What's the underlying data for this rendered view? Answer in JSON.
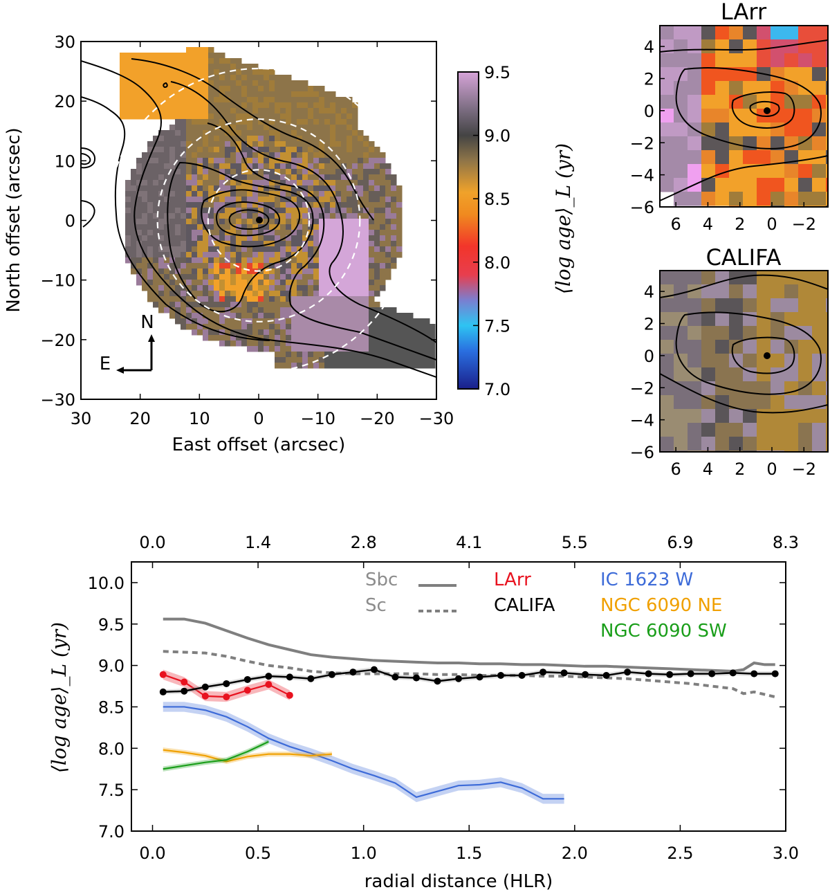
{
  "chart_data": [
    {
      "type": "heatmap",
      "title": "",
      "xlabel": "East offset (arcsec)",
      "ylabel": "North offset (arcsec)",
      "xlim": [
        30,
        -30
      ],
      "ylim": [
        -30,
        30
      ],
      "xticks": [
        "30",
        "20",
        "10",
        "0",
        "−10",
        "−20",
        "−30"
      ],
      "yticks": [
        "30",
        "20",
        "10",
        "0",
        "−10",
        "−20",
        "−30"
      ],
      "compass": {
        "north": "N",
        "east": "E"
      },
      "dashed_circle_radii_arcsec": [
        7,
        14,
        21
      ],
      "colorbar": {
        "label": "⟨log age⟩_L (yr)",
        "range": [
          7.0,
          9.5
        ],
        "ticks": [
          "9.5",
          "9.0",
          "8.5",
          "8.0",
          "7.5",
          "7.0"
        ]
      }
    },
    {
      "type": "heatmap",
      "title": "LArr",
      "xlim": [
        7,
        -3.5
      ],
      "ylim": [
        -6,
        5.3
      ],
      "xticks": [
        "6",
        "4",
        "2",
        "0",
        "−2"
      ],
      "yticks": [
        "4",
        "2",
        "0",
        "−2",
        "−4",
        "−6"
      ]
    },
    {
      "type": "heatmap",
      "title": "CALIFA",
      "xlim": [
        7,
        -3.5
      ],
      "ylim": [
        -6,
        5.3
      ],
      "xticks": [
        "6",
        "4",
        "2",
        "0",
        "−2"
      ],
      "yticks": [
        "4",
        "2",
        "0",
        "−2",
        "−4",
        "−6"
      ]
    },
    {
      "type": "line",
      "title": "",
      "xlabel": "radial distance (HLR)",
      "ylabel": "⟨log age⟩_L (yr)",
      "xlim": [
        -0.1,
        3.0
      ],
      "ylim": [
        7.0,
        10.25
      ],
      "xticks": [
        "0.0",
        "0.5",
        "1.0",
        "1.5",
        "2.0",
        "2.5",
        "3.0"
      ],
      "yticks": [
        "7.0",
        "7.5",
        "8.0",
        "8.5",
        "9.0",
        "9.5",
        "10.0"
      ],
      "top_xticks": [
        "0.0",
        "1.4",
        "2.8",
        "4.1",
        "5.5",
        "6.9",
        "8.3"
      ],
      "series": [
        {
          "name": "Sbc",
          "color": "#7f7f7f",
          "style": "solid",
          "x": [
            0.05,
            0.15,
            0.25,
            0.35,
            0.45,
            0.55,
            0.65,
            0.75,
            0.85,
            0.95,
            1.05,
            1.15,
            1.25,
            1.35,
            1.45,
            1.55,
            1.65,
            1.75,
            1.85,
            1.95,
            2.05,
            2.15,
            2.25,
            2.35,
            2.45,
            2.55,
            2.65,
            2.75,
            2.8,
            2.85,
            2.9,
            2.95
          ],
          "values": [
            9.56,
            9.56,
            9.51,
            9.42,
            9.33,
            9.25,
            9.19,
            9.13,
            9.1,
            9.08,
            9.06,
            9.05,
            9.04,
            9.03,
            9.03,
            9.02,
            9.02,
            9.01,
            9.01,
            9.0,
            8.99,
            8.99,
            8.98,
            8.97,
            8.96,
            8.95,
            8.94,
            8.93,
            8.95,
            9.03,
            9.01,
            9.01
          ]
        },
        {
          "name": "Sc",
          "color": "#7f7f7f",
          "style": "dashed",
          "x": [
            0.05,
            0.15,
            0.25,
            0.35,
            0.45,
            0.55,
            0.65,
            0.75,
            0.85,
            0.95,
            1.05,
            1.15,
            1.25,
            1.35,
            1.45,
            1.55,
            1.65,
            1.75,
            1.85,
            1.95,
            2.05,
            2.15,
            2.25,
            2.35,
            2.45,
            2.55,
            2.65,
            2.75,
            2.8,
            2.85,
            2.9,
            2.95
          ],
          "values": [
            9.17,
            9.16,
            9.15,
            9.11,
            9.05,
            9.0,
            8.97,
            8.93,
            8.91,
            8.9,
            8.9,
            8.9,
            8.9,
            8.89,
            8.89,
            8.88,
            8.88,
            8.88,
            8.87,
            8.87,
            8.86,
            8.85,
            8.84,
            8.82,
            8.8,
            8.78,
            8.75,
            8.72,
            8.66,
            8.68,
            8.65,
            8.62
          ]
        },
        {
          "name": "LArr",
          "color": "#e8121f",
          "style": "solid-markers",
          "x": [
            0.05,
            0.15,
            0.25,
            0.35,
            0.45,
            0.55,
            0.65
          ],
          "values": [
            8.89,
            8.8,
            8.63,
            8.62,
            8.7,
            8.77,
            8.64
          ]
        },
        {
          "name": "CALIFA",
          "color": "#000000",
          "style": "solid-markers",
          "x": [
            0.05,
            0.15,
            0.25,
            0.35,
            0.45,
            0.55,
            0.65,
            0.75,
            0.85,
            0.95,
            1.05,
            1.15,
            1.25,
            1.35,
            1.45,
            1.55,
            1.65,
            1.75,
            1.85,
            1.95,
            2.05,
            2.15,
            2.25,
            2.35,
            2.45,
            2.55,
            2.65,
            2.75,
            2.85,
            2.95
          ],
          "values": [
            8.68,
            8.69,
            8.74,
            8.78,
            8.83,
            8.87,
            8.86,
            8.84,
            8.89,
            8.92,
            8.95,
            8.86,
            8.85,
            8.81,
            8.84,
            8.86,
            8.88,
            8.88,
            8.92,
            8.91,
            8.89,
            8.88,
            8.92,
            8.9,
            8.89,
            8.9,
            8.9,
            8.91,
            8.9,
            8.9
          ]
        },
        {
          "name": "IC 1623 W",
          "color": "#3d6bd8",
          "style": "solid",
          "x": [
            0.05,
            0.15,
            0.25,
            0.35,
            0.45,
            0.55,
            0.65,
            0.75,
            0.85,
            0.95,
            1.05,
            1.15,
            1.25,
            1.35,
            1.45,
            1.55,
            1.65,
            1.75,
            1.85,
            1.95
          ],
          "values": [
            8.5,
            8.5,
            8.46,
            8.38,
            8.26,
            8.12,
            8.02,
            7.94,
            7.85,
            7.75,
            7.67,
            7.58,
            7.41,
            7.48,
            7.55,
            7.56,
            7.59,
            7.52,
            7.39,
            7.39
          ]
        },
        {
          "name": "NGC 6090 NE",
          "color": "#f0a000",
          "style": "solid",
          "x": [
            0.05,
            0.15,
            0.25,
            0.35,
            0.45,
            0.55,
            0.65,
            0.75,
            0.85
          ],
          "values": [
            7.98,
            7.95,
            7.91,
            7.84,
            7.9,
            7.93,
            7.93,
            7.91,
            7.93
          ]
        },
        {
          "name": "NGC 6090 SW",
          "color": "#1a9e1a",
          "style": "solid",
          "x": [
            0.05,
            0.15,
            0.25,
            0.35,
            0.45,
            0.55
          ],
          "values": [
            7.75,
            7.79,
            7.83,
            7.86,
            7.96,
            8.08
          ]
        }
      ]
    }
  ]
}
